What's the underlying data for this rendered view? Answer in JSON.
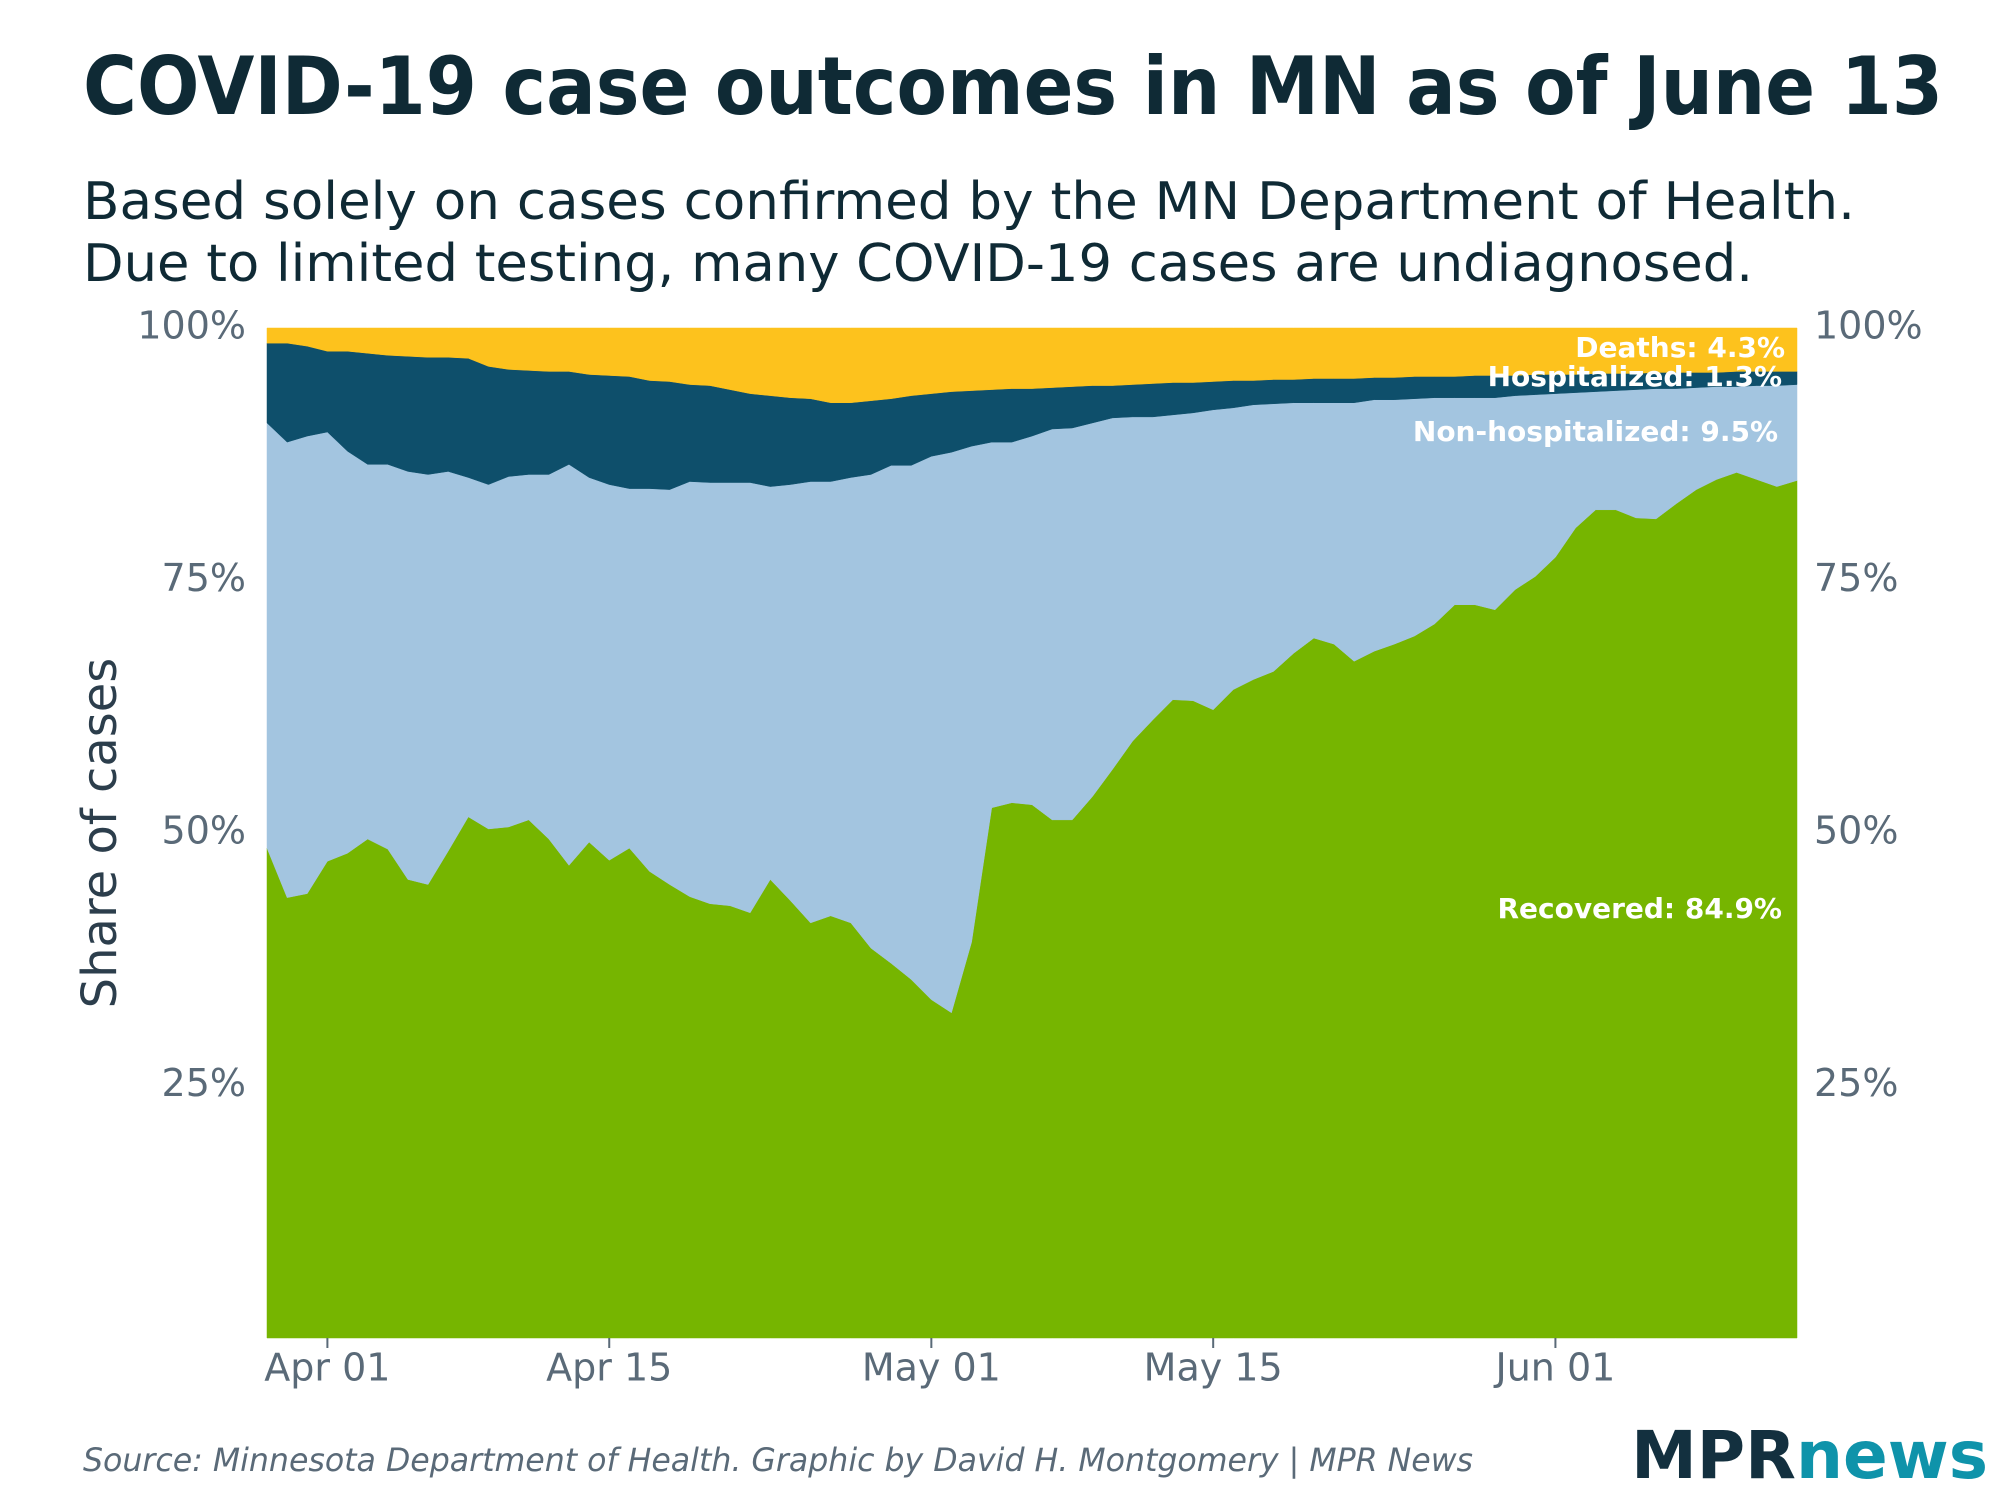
{
  "chart_data": {
    "type": "stacked_area",
    "title": "COVID-19 case outcomes in MN as of June 13",
    "subtitle": [
      "Based solely on cases confirmed by the MN Department of Health.",
      "Due to limited testing, many COVID-19 cases are undiagnosed."
    ],
    "y_label": "Share of cases",
    "source": "Source: Minnesota Department of Health. Graphic by David H. Montgomery | MPR News",
    "logo": [
      "MPR",
      "news"
    ],
    "x": [
      "Mar 29",
      "Mar 30",
      "Mar 31",
      "Apr 01",
      "Apr 02",
      "Apr 03",
      "Apr 04",
      "Apr 05",
      "Apr 06",
      "Apr 07",
      "Apr 08",
      "Apr 09",
      "Apr 10",
      "Apr 11",
      "Apr 12",
      "Apr 13",
      "Apr 14",
      "Apr 15",
      "Apr 16",
      "Apr 17",
      "Apr 18",
      "Apr 19",
      "Apr 20",
      "Apr 21",
      "Apr 22",
      "Apr 23",
      "Apr 24",
      "Apr 25",
      "Apr 26",
      "Apr 27",
      "Apr 28",
      "Apr 29",
      "Apr 30",
      "May 01",
      "May 02",
      "May 03",
      "May 04",
      "May 05",
      "May 06",
      "May 07",
      "May 08",
      "May 09",
      "May 10",
      "May 11",
      "May 12",
      "May 13",
      "May 14",
      "May 15",
      "May 16",
      "May 17",
      "May 18",
      "May 19",
      "May 20",
      "May 21",
      "May 22",
      "May 23",
      "May 24",
      "May 25",
      "May 26",
      "May 27",
      "May 28",
      "May 29",
      "May 30",
      "May 31",
      "Jun 01",
      "Jun 02",
      "Jun 03",
      "Jun 04",
      "Jun 05",
      "Jun 06",
      "Jun 07",
      "Jun 08",
      "Jun 09",
      "Jun 10",
      "Jun 11",
      "Jun 12",
      "Jun 13"
    ],
    "xticks": [
      "Apr 01",
      "Apr 15",
      "May 01",
      "May 15",
      "Jun 01"
    ],
    "ylim": [
      0,
      100
    ],
    "yticks": [
      {
        "value": 25,
        "label": "25%"
      },
      {
        "value": 50,
        "label": "50%"
      },
      {
        "value": 75,
        "label": "75%"
      },
      {
        "value": 100,
        "label": "100%"
      }
    ],
    "y2lim": [
      0,
      100
    ],
    "y2ticks": [
      {
        "value": 25,
        "label": "25%"
      },
      {
        "value": 50,
        "label": "50%"
      },
      {
        "value": 75,
        "label": "75%"
      },
      {
        "value": 100,
        "label": "100%"
      }
    ],
    "grid": false,
    "series": [
      {
        "label": "Recovered: 84.9%",
        "color": "#76b500",
        "values": [
          48.5,
          43.6,
          44.0,
          47.2,
          48.0,
          49.4,
          48.4,
          45.4,
          44.9,
          48.2,
          51.6,
          50.4,
          50.6,
          51.3,
          49.4,
          46.8,
          49.1,
          47.3,
          48.5,
          46.2,
          44.9,
          43.7,
          43.0,
          42.8,
          42.1,
          45.4,
          43.3,
          41.1,
          41.8,
          41.1,
          38.6,
          37.1,
          35.5,
          33.5,
          32.2,
          39.2,
          52.5,
          53.0,
          52.8,
          51.3,
          51.3,
          53.6,
          56.3,
          59.1,
          61.2,
          63.2,
          63.1,
          62.2,
          64.2,
          65.2,
          66.0,
          67.8,
          69.3,
          68.7,
          67.0,
          68.0,
          68.7,
          69.5,
          70.7,
          72.6,
          72.6,
          72.1,
          74.1,
          75.4,
          77.3,
          80.2,
          82.0,
          82.0,
          81.2,
          81.1,
          82.6,
          84.0,
          85.0,
          85.7,
          85.0,
          84.3,
          84.9
        ]
      },
      {
        "label": "Non-hospitalized: 9.5%",
        "color": "#a3c5e0",
        "values": [
          42.1,
          45.1,
          45.3,
          42.5,
          39.8,
          37.1,
          38.1,
          40.4,
          40.6,
          37.6,
          33.6,
          34.1,
          34.7,
          34.2,
          36.1,
          39.7,
          36.1,
          37.2,
          35.6,
          37.9,
          39.1,
          41.1,
          41.7,
          41.9,
          42.6,
          38.9,
          41.2,
          43.7,
          43.0,
          44.1,
          46.9,
          49.3,
          50.9,
          53.8,
          55.5,
          49.1,
          36.2,
          35.7,
          36.5,
          38.7,
          38.8,
          37.0,
          34.8,
          32.1,
          30.0,
          28.2,
          28.5,
          29.7,
          27.9,
          27.2,
          26.5,
          24.8,
          23.3,
          23.9,
          25.6,
          24.9,
          24.2,
          23.5,
          22.4,
          20.5,
          20.5,
          21.0,
          19.2,
          18.0,
          16.2,
          13.4,
          11.7,
          11.8,
          12.7,
          12.9,
          11.4,
          10.1,
          9.2,
          8.5,
          9.3,
          10.0,
          9.5
        ]
      },
      {
        "label": "Hospitalized: 1.3%",
        "color": "#0e4f6b",
        "values": [
          7.9,
          9.8,
          8.9,
          8.0,
          9.9,
          11.0,
          10.8,
          11.4,
          11.6,
          11.3,
          11.8,
          11.7,
          10.6,
          10.3,
          10.2,
          9.2,
          10.2,
          10.8,
          11.1,
          10.7,
          10.7,
          9.6,
          9.6,
          9.2,
          8.8,
          9.0,
          8.6,
          8.2,
          7.8,
          7.4,
          7.3,
          6.6,
          6.9,
          6.2,
          6.0,
          5.5,
          5.2,
          5.3,
          4.7,
          4.1,
          4.1,
          3.7,
          3.2,
          3.2,
          3.3,
          3.2,
          3.0,
          2.8,
          2.7,
          2.4,
          2.4,
          2.3,
          2.4,
          2.4,
          2.4,
          2.2,
          2.2,
          2.2,
          2.1,
          2.1,
          2.2,
          2.2,
          2.0,
          2.0,
          1.9,
          1.8,
          1.8,
          1.7,
          1.6,
          1.6,
          1.6,
          1.5,
          1.4,
          1.5,
          1.4,
          1.4,
          1.3
        ]
      },
      {
        "label": "Deaths: 4.3%",
        "color": "#fdc21d",
        "values": [
          1.5,
          1.5,
          1.8,
          2.3,
          2.3,
          2.5,
          2.7,
          2.8,
          2.9,
          2.9,
          3.0,
          3.8,
          4.1,
          4.2,
          4.3,
          4.3,
          4.6,
          4.7,
          4.8,
          5.2,
          5.3,
          5.6,
          5.7,
          6.1,
          6.5,
          6.7,
          6.9,
          7.0,
          7.4,
          7.4,
          7.2,
          7.0,
          6.7,
          6.5,
          6.3,
          6.2,
          6.1,
          6.0,
          6.0,
          5.9,
          5.8,
          5.7,
          5.7,
          5.6,
          5.5,
          5.4,
          5.4,
          5.3,
          5.2,
          5.2,
          5.1,
          5.1,
          5.0,
          5.0,
          5.0,
          4.9,
          4.9,
          4.8,
          4.8,
          4.8,
          4.7,
          4.7,
          4.7,
          4.6,
          4.6,
          4.6,
          4.5,
          4.5,
          4.5,
          4.4,
          4.4,
          4.4,
          4.4,
          4.3,
          4.3,
          4.3,
          4.3
        ]
      }
    ]
  }
}
